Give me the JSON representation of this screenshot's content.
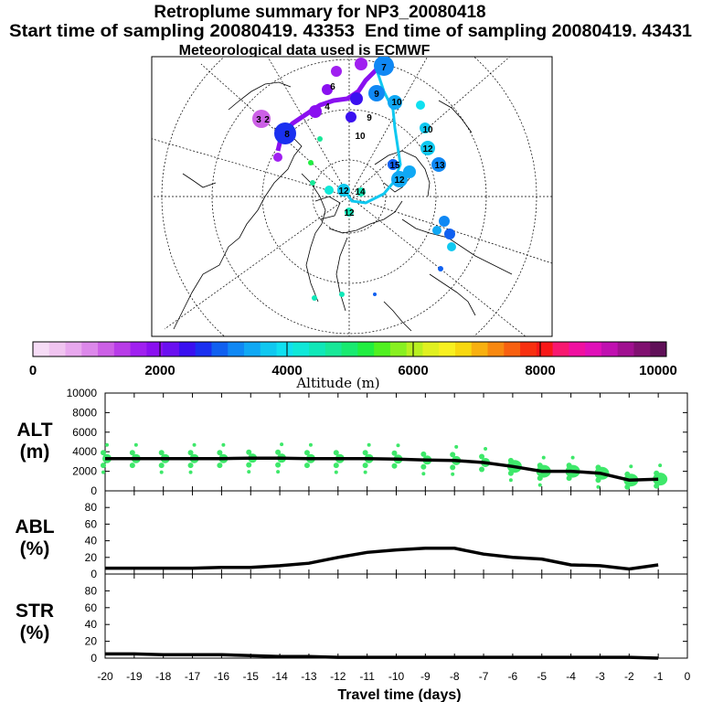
{
  "title": "Retroplume summary for NP3_20080418",
  "start_label": "Start time of sampling 20080419. 43353",
  "end_label": "End time of sampling 20080419. 43431",
  "met_label": "Meteorological data used is ECMWF",
  "colorbar": {
    "ticks": [
      "0",
      "2000",
      "4000",
      "6000",
      "8000",
      "10000"
    ],
    "label": "Altitude (m)",
    "colors": [
      "#f6dcf6",
      "#f0c4f0",
      "#e8a8ee",
      "#dc88ea",
      "#cc60e6",
      "#b83ce8",
      "#a020f0",
      "#8a10f0",
      "#6a10f0",
      "#3a10f0",
      "#1a30f0",
      "#1060f0",
      "#1088f4",
      "#10a8f4",
      "#10c8f0",
      "#10e0f0",
      "#10e8d8",
      "#10e8b8",
      "#18e898",
      "#18ea70",
      "#20ee40",
      "#50f020",
      "#88f020",
      "#b8f020",
      "#e0f020",
      "#f8f020",
      "#f8d810",
      "#f8b010",
      "#f88810",
      "#f86010",
      "#f83010",
      "#f81818",
      "#f81870",
      "#f010a0",
      "#e010b8",
      "#c010b0",
      "#a01090",
      "#801070",
      "#601058"
    ]
  },
  "map": {
    "labels": [
      "7",
      "9",
      "10",
      "3",
      "2",
      "8",
      "10",
      "12",
      "13",
      "15",
      "12",
      "14",
      "12",
      "12",
      "10",
      "9",
      "6",
      "4"
    ]
  },
  "chart_data": [
    {
      "type": "line",
      "panel": "ALT",
      "ylabel": "ALT\n(m)",
      "ylabel_lines": [
        "ALT",
        "(m)"
      ],
      "x": [
        -20,
        -19,
        -18,
        -17,
        -16,
        -15,
        -14,
        -13,
        -12,
        -11,
        -10,
        -9,
        -8,
        -7,
        -6,
        -5,
        -4,
        -3,
        -2,
        -1
      ],
      "values": [
        3300,
        3300,
        3300,
        3300,
        3300,
        3350,
        3350,
        3300,
        3300,
        3300,
        3250,
        3150,
        3100,
        2900,
        2500,
        2000,
        2000,
        1800,
        1100,
        1200
      ],
      "ylim": [
        0,
        10000
      ],
      "yticks": [
        "0",
        "2000",
        "4000",
        "6000",
        "8000",
        "10000"
      ],
      "scatter_note": "green plume clusters"
    },
    {
      "type": "line",
      "panel": "ABL",
      "ylabel_lines": [
        "ABL",
        "(%)"
      ],
      "x": [
        -20,
        -19,
        -18,
        -17,
        -16,
        -15,
        -14,
        -13,
        -12,
        -11,
        -10,
        -9,
        -8,
        -7,
        -6,
        -5,
        -4,
        -3,
        -2,
        -1
      ],
      "values": [
        7,
        7,
        7,
        7,
        8,
        8,
        10,
        13,
        20,
        26,
        29,
        31,
        31,
        24,
        20,
        18,
        11,
        10,
        6,
        11
      ],
      "ylim": [
        0,
        100
      ],
      "yticks": [
        "0",
        "20",
        "40",
        "60",
        "80"
      ]
    },
    {
      "type": "line",
      "panel": "STR",
      "ylabel_lines": [
        "STR",
        "(%)"
      ],
      "x": [
        -20,
        -19,
        -18,
        -17,
        -16,
        -15,
        -14,
        -13,
        -12,
        -11,
        -10,
        -9,
        -8,
        -7,
        -6,
        -5,
        -4,
        -3,
        -2,
        -1
      ],
      "values": [
        5,
        5,
        4,
        4,
        4,
        3,
        2,
        2,
        1,
        1,
        1,
        1,
        1,
        1,
        1,
        1,
        1,
        1,
        1,
        0
      ],
      "ylim": [
        0,
        100
      ],
      "yticks": [
        "0",
        "20",
        "40",
        "60",
        "80"
      ],
      "xlabel": "Travel time (days)",
      "xticks": [
        "-20",
        "-19",
        "-18",
        "-17",
        "-16",
        "-15",
        "-14",
        "-13",
        "-12",
        "-11",
        "-10",
        "-9",
        "-8",
        "-7",
        "-6",
        "-5",
        "-4",
        "-3",
        "-2",
        "-1",
        "0"
      ]
    }
  ]
}
